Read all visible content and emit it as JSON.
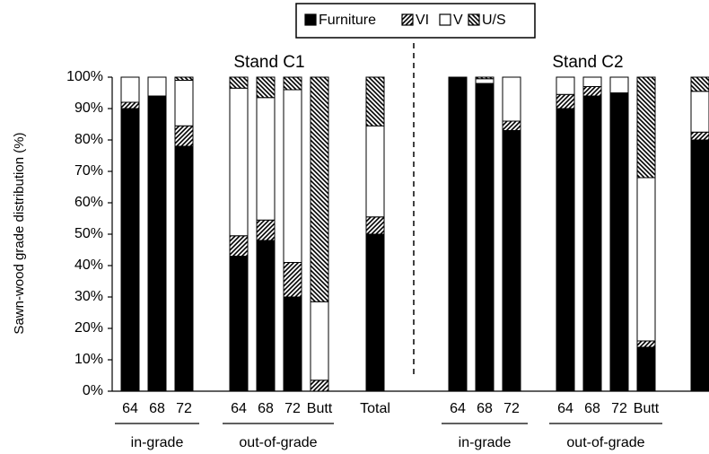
{
  "chart_data": {
    "type": "stacked_bar",
    "y_label": "Sawn-wood grade distribution (%)",
    "annotations": [
      "Stand C1",
      "Stand C2"
    ],
    "groups": [
      "in-grade",
      "out-of-grade",
      "in-grade",
      "out-of-grade"
    ],
    "categories": [
      "64",
      "68",
      "72",
      "64",
      "68",
      "72",
      "Butt",
      "Total",
      "64",
      "68",
      "72",
      "64",
      "68",
      "72",
      "Butt",
      null
    ],
    "series": [
      {
        "name": "Furniture",
        "color": "#000000",
        "values": [
          90,
          94,
          78,
          43,
          48,
          30,
          0,
          50,
          100,
          98,
          83,
          90,
          94,
          95,
          14,
          80
        ]
      },
      {
        "name": "VI",
        "color": "#000000",
        "hatch": "forward",
        "values": [
          2,
          0,
          6.5,
          6.5,
          6.5,
          11,
          3.5,
          5.5,
          0,
          0,
          3,
          4.5,
          3,
          0,
          2,
          2.5
        ]
      },
      {
        "name": "V",
        "color": "#ffffff",
        "values": [
          8,
          6,
          14.5,
          47,
          39,
          55,
          25,
          29,
          0,
          1.5,
          14,
          5.5,
          3,
          5,
          52,
          13
        ]
      },
      {
        "name": "U/S",
        "color": "#000000",
        "hatch": "back",
        "values": [
          0,
          0,
          1,
          3.5,
          6.5,
          4,
          71.5,
          15.5,
          0,
          0.5,
          0,
          0,
          0,
          0,
          32,
          4.5
        ]
      }
    ],
    "ylim": [
      0,
      100
    ],
    "yticks": [
      {
        "value": 0,
        "label": "0%"
      },
      {
        "value": 10,
        "label": "10%"
      },
      {
        "value": 20,
        "label": "20%"
      },
      {
        "value": 30,
        "label": "30%"
      },
      {
        "value": 40,
        "label": "40%"
      },
      {
        "value": 50,
        "label": "50%"
      },
      {
        "value": 60,
        "label": "60%"
      },
      {
        "value": 70,
        "label": "70%"
      },
      {
        "value": 80,
        "label": "80%"
      },
      {
        "value": 90,
        "label": "90%"
      },
      {
        "value": 100,
        "label": "100%"
      }
    ],
    "legend": "top"
  }
}
